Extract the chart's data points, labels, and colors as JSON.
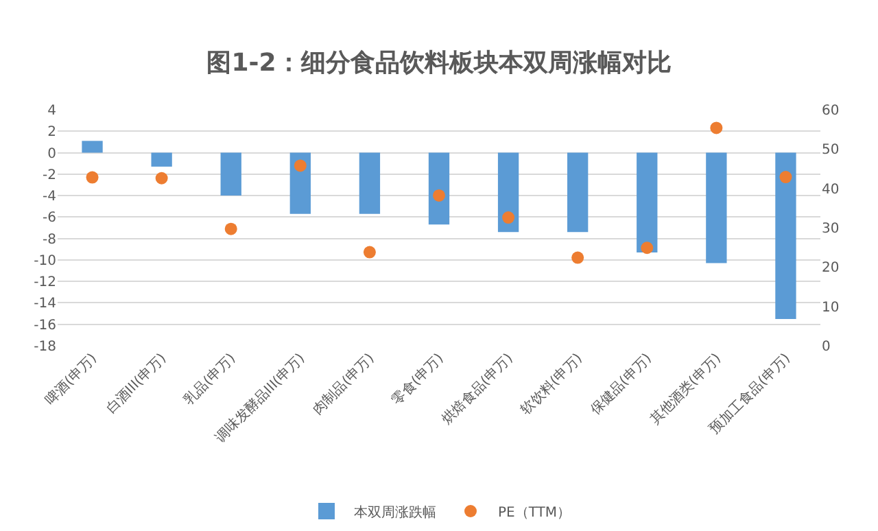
{
  "chart_data": {
    "type": "bar",
    "title": "图1-2：细分食品饮料板块本双周涨幅对比",
    "categories": [
      "啤酒(申万)",
      "白酒III(申万)",
      "乳品(申万)",
      "调味发酵品III(申万)",
      "肉制品(申万)",
      "零食(申万)",
      "烘焙食品(申万)",
      "软饮料(申万)",
      "保健品(申万)",
      "其他酒类(申万)",
      "预加工食品(申万)"
    ],
    "series": [
      {
        "name": "本双周涨跌幅",
        "color": "#5b9bd5",
        "values": [
          1.1,
          -1.3,
          -4.0,
          -5.7,
          -5.7,
          -6.7,
          -7.4,
          -7.4,
          -9.3,
          -10.3,
          -15.5
        ]
      },
      {
        "name": "PE（TTM）",
        "type": "scatter",
        "axis": "y2",
        "color": "#ed7d31",
        "values": [
          42.8,
          42.6,
          29.7,
          45.8,
          23.8,
          38.2,
          32.6,
          22.4,
          24.9,
          55.4,
          42.9
        ]
      }
    ],
    "ylim": [
      -18,
      4
    ],
    "yticks": [
      -18,
      -16,
      -14,
      -12,
      -10,
      -8,
      -6,
      -4,
      -2,
      0,
      2,
      4
    ],
    "y2lim": [
      0,
      60
    ],
    "y2ticks": [
      0,
      10,
      20,
      30,
      40,
      50,
      60
    ],
    "grid": "y",
    "legend": "bottom",
    "marker": "circle"
  }
}
